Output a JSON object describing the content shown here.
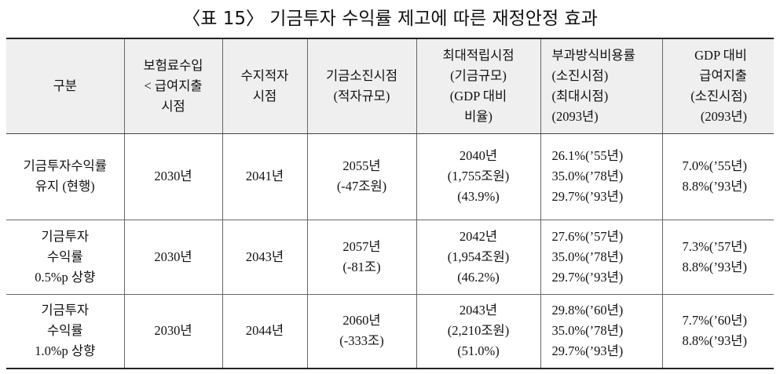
{
  "title": "〈표 15〉 기금투자 수익률 제고에 따른 재정안정 효과",
  "table": {
    "header": [
      [
        "구분"
      ],
      [
        "보험료수입",
        "< 급여지출",
        "시점"
      ],
      [
        "수지적자",
        "시점"
      ],
      [
        "기금소진시점",
        "(적자규모)"
      ],
      [
        "최대적립시점",
        "(기금규모)",
        "(GDP 대비",
        "비율)"
      ],
      [
        "부과방식비용률",
        "(소진시점)",
        "(최대시점)",
        "(2093년)"
      ],
      [
        "GDP 대비",
        "급여지출",
        "(소진시점)",
        "(2093년)"
      ]
    ],
    "rows": [
      [
        [
          "기금투자수익률",
          "유지 (현행)"
        ],
        [
          "2030년"
        ],
        [
          "2041년"
        ],
        [
          "2055년",
          "(-47조원)"
        ],
        [
          "2040년",
          "(1,755조원)",
          "(43.9%)"
        ],
        [
          "26.1%(’55년)",
          "35.0%(’78년)",
          "29.7%(’93년)"
        ],
        [
          "7.0%(’55년)",
          "8.8%(’93년)"
        ]
      ],
      [
        [
          "기금투자",
          "수익률",
          "0.5%p 상향"
        ],
        [
          "2030년"
        ],
        [
          "2043년"
        ],
        [
          "2057년",
          "(-81조)"
        ],
        [
          "2042년",
          "(1,954조원)",
          "(46.2%)"
        ],
        [
          "27.6%(’57년)",
          "35.0%(’78년)",
          "29.7%(’93년)"
        ],
        [
          "7.3%(’57년)",
          "8.8%(’93년)"
        ]
      ],
      [
        [
          "기금투자",
          "수익률",
          "1.0%p 상향"
        ],
        [
          "2030년"
        ],
        [
          "2044년"
        ],
        [
          "2060년",
          "(-333조)"
        ],
        [
          "2043년",
          "(2,210조원)",
          "(51.0%)"
        ],
        [
          "29.8%(’60년)",
          "35.0%(’78년)",
          "29.7%(’93년)"
        ],
        [
          "7.7%(’60년)",
          "8.8%(’93년)"
        ]
      ]
    ]
  }
}
